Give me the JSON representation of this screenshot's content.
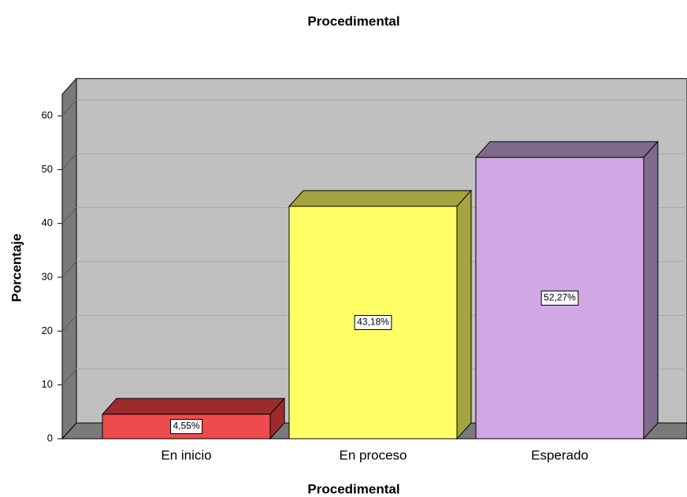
{
  "chart_data": {
    "type": "bar",
    "title": "Procedimental",
    "x_label": "Procedimental",
    "y_label": "Porcentaje",
    "categories": [
      "En inicio",
      "En proceso",
      "Esperado"
    ],
    "values": [
      4.55,
      43.18,
      52.27
    ],
    "value_labels": [
      "4,55%",
      "43,18%",
      "52,27%"
    ],
    "colors": [
      "#ee4c4c",
      "#ffff66",
      "#cfa8e4"
    ],
    "top_colors": [
      "#9c2c2c",
      "#a3a340",
      "#7f6a8c"
    ],
    "ylim": [
      0,
      64
    ],
    "yticks": [
      0,
      10,
      20,
      30,
      40,
      50,
      60
    ],
    "grid": true
  }
}
